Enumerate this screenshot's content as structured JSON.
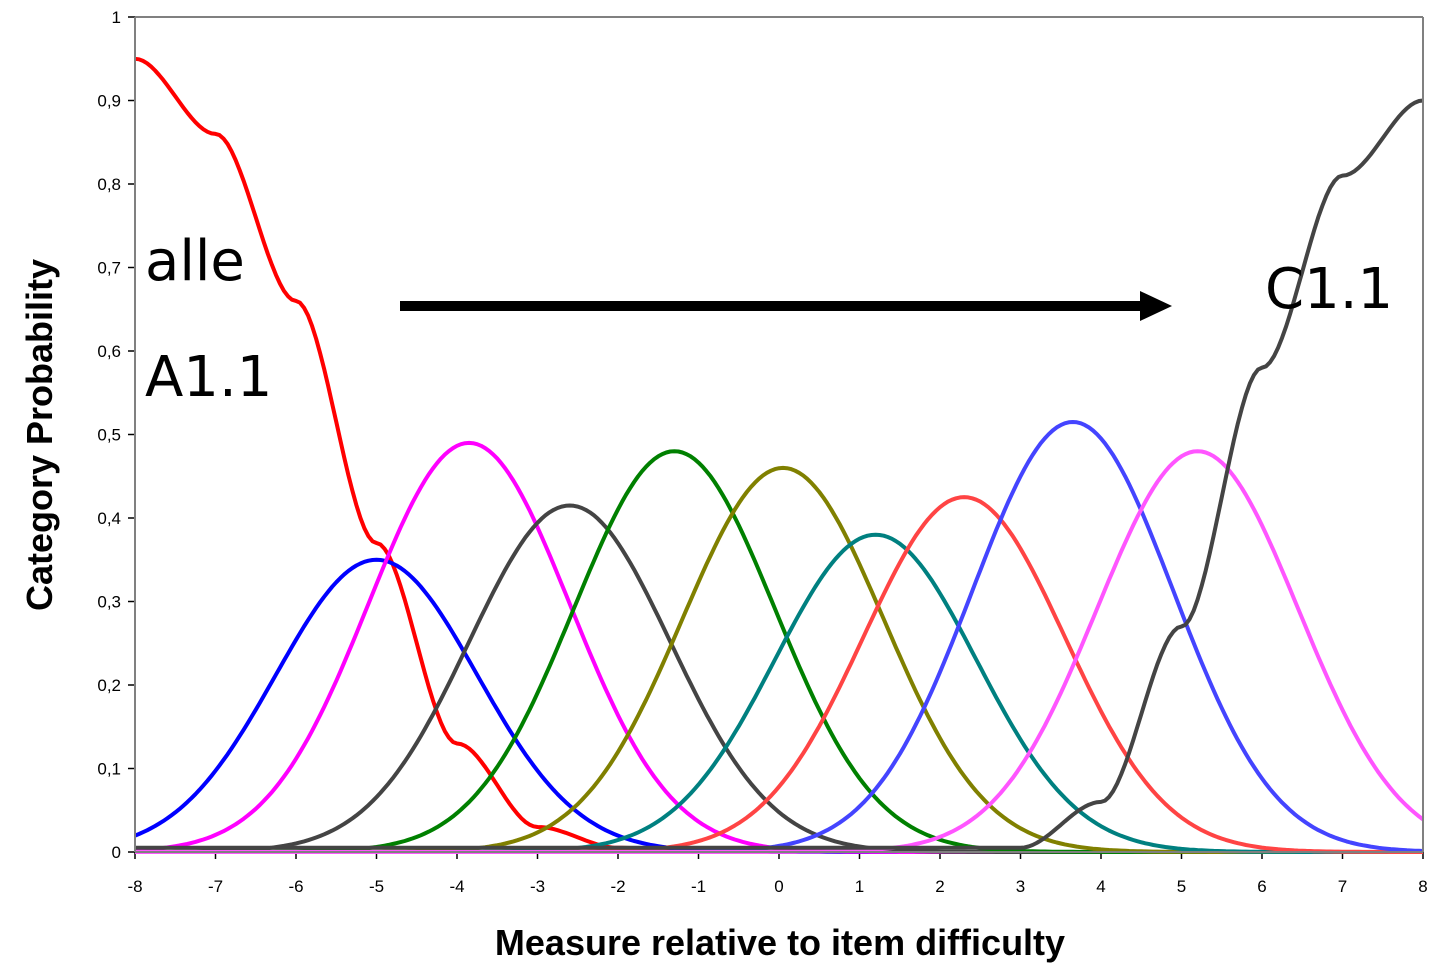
{
  "chart_data": {
    "type": "line",
    "title": "",
    "xlabel": "Measure relative to item difficulty",
    "ylabel": "Category Probability",
    "xlim": [
      -8,
      8
    ],
    "ylim": [
      0,
      1
    ],
    "xticks": [
      "-8",
      "-7",
      "-6",
      "-5",
      "-4",
      "-3",
      "-2",
      "-1",
      "0",
      "1",
      "2",
      "3",
      "4",
      "5",
      "6",
      "7",
      "8"
    ],
    "yticks": [
      "0",
      "0,1",
      "0,2",
      "0,3",
      "0,4",
      "0,5",
      "0,6",
      "0,7",
      "0,8",
      "0,9",
      "1"
    ],
    "grid": false,
    "legend": "none",
    "annotations": [
      "alle",
      "A1.1",
      "C1.1"
    ],
    "series": [
      {
        "color": "#ff0000",
        "kind": "decreasing",
        "points": [
          [
            -8,
            0.95
          ],
          [
            -7,
            0.86
          ],
          [
            -6,
            0.66
          ],
          [
            -5,
            0.37
          ],
          [
            -4,
            0.13
          ],
          [
            -3,
            0.03
          ],
          [
            -2,
            0.005
          ],
          [
            -1,
            0.001
          ],
          [
            0,
            0
          ]
        ]
      },
      {
        "color": "#0000ff",
        "peak_x": -5.0,
        "peak_y": 0.35
      },
      {
        "color": "#ff00ff",
        "peak_x": -3.85,
        "peak_y": 0.49
      },
      {
        "color": "#444444",
        "peak_x": -2.6,
        "peak_y": 0.415
      },
      {
        "color": "#008000",
        "peak_x": -1.3,
        "peak_y": 0.48
      },
      {
        "color": "#808000",
        "peak_x": 0.05,
        "peak_y": 0.46
      },
      {
        "color": "#008080",
        "peak_x": 1.2,
        "peak_y": 0.38
      },
      {
        "color": "#ff4444",
        "peak_x": 2.3,
        "peak_y": 0.425
      },
      {
        "color": "#4444ff",
        "peak_x": 3.65,
        "peak_y": 0.515
      },
      {
        "color": "#ff55ff",
        "peak_x": 5.2,
        "peak_y": 0.48
      },
      {
        "color": "#444444",
        "kind": "increasing",
        "points": [
          [
            3,
            0.005
          ],
          [
            4,
            0.06
          ],
          [
            5,
            0.27
          ],
          [
            6,
            0.58
          ],
          [
            7,
            0.81
          ],
          [
            8,
            0.9
          ]
        ]
      }
    ]
  }
}
